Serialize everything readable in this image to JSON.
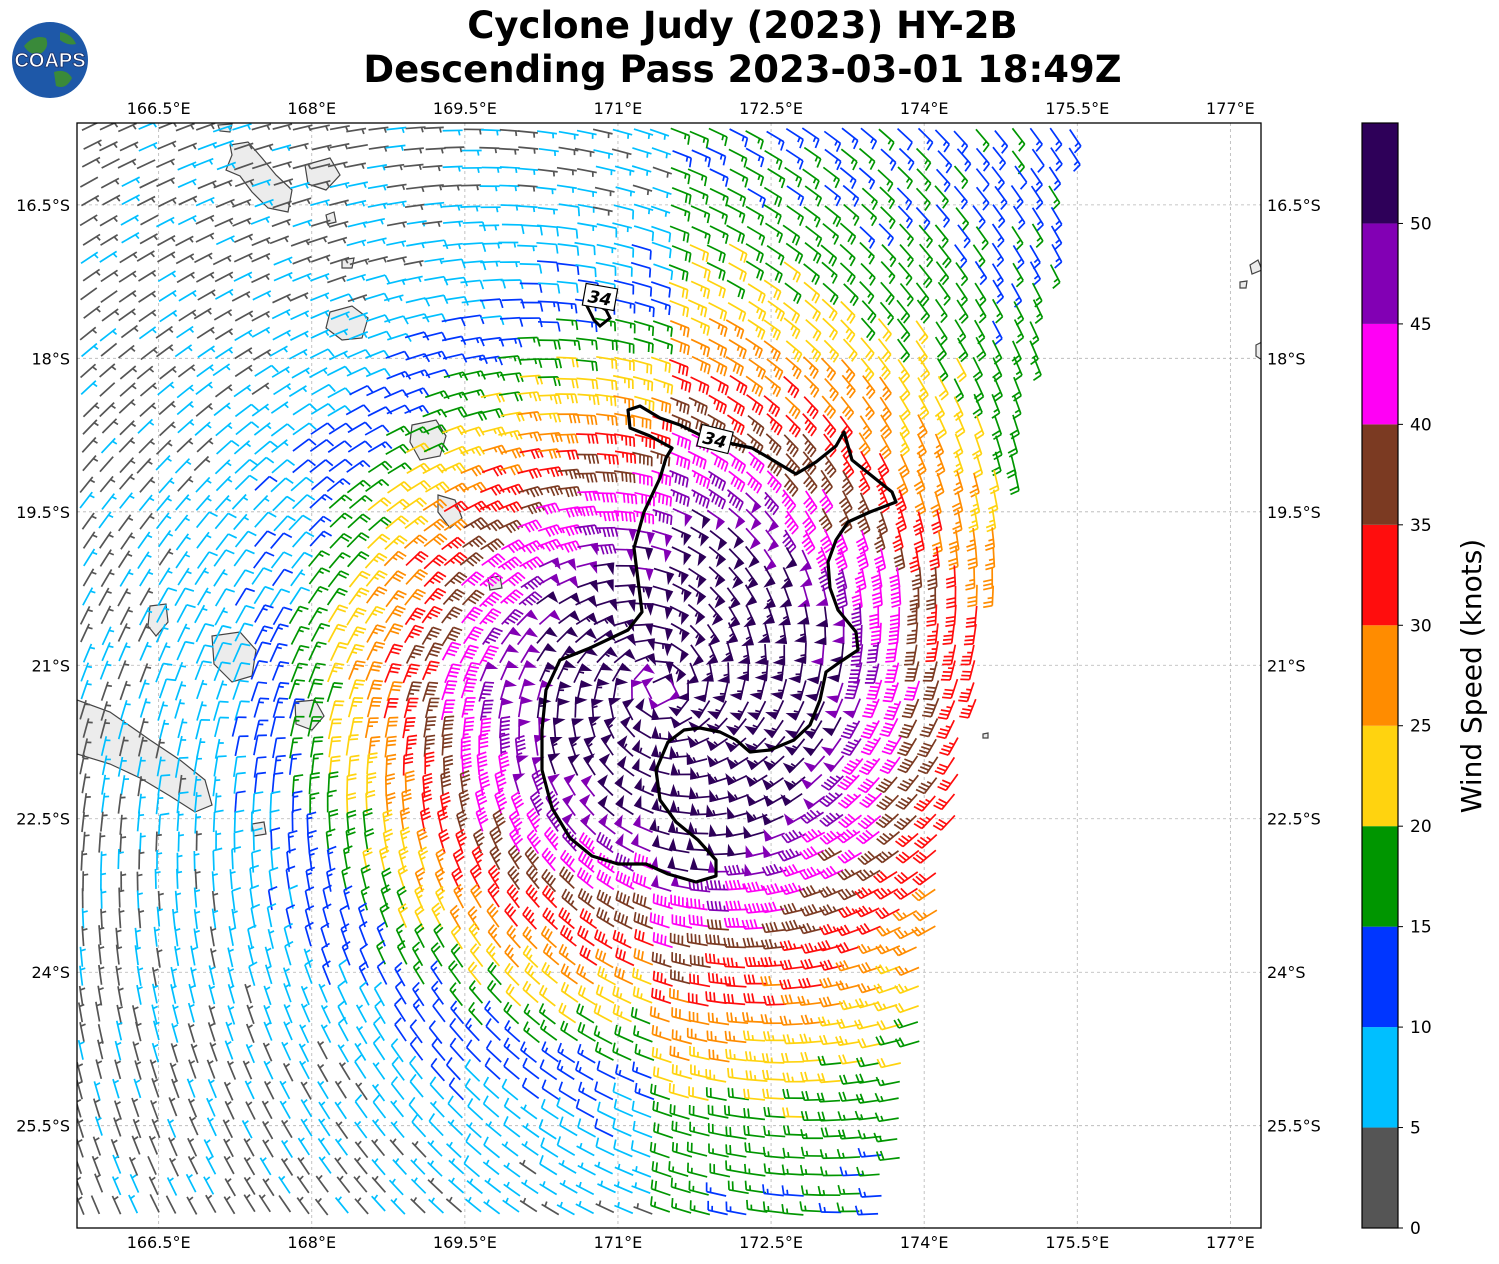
{
  "title": {
    "line1": "Cyclone Judy (2023) HY-2B",
    "line2": "Descending Pass 2023-03-01 18:49Z"
  },
  "logo": {
    "text": "COAPS"
  },
  "map": {
    "lon_labels": [
      "166.5°E",
      "168°E",
      "169.5°E",
      "171°E",
      "172.5°E",
      "174°E",
      "175.5°E",
      "177°E"
    ],
    "lat_labels": [
      "16.5°S",
      "18°S",
      "19.5°S",
      "21°S",
      "22.5°S",
      "24°S",
      "25.5°S"
    ],
    "lon_range": [
      165.7,
      177.3
    ],
    "lat_range": [
      -15.7,
      -26.5
    ],
    "gridlines": true,
    "contour_label": "34",
    "contour_label_2": "34"
  },
  "colorbar": {
    "label": "Wind Speed (knots)",
    "ticks": [
      "0",
      "5",
      "10",
      "15",
      "20",
      "25",
      "30",
      "35",
      "40",
      "45",
      "50"
    ],
    "colors": [
      "#555555",
      "#00bfff",
      "#0036ff",
      "#009600",
      "#ffd30f",
      "#ff8c00",
      "#ff0d0d",
      "#7b3a22",
      "#ff00f5",
      "#8200b4",
      "#2e0059"
    ]
  },
  "colors": {
    "contour": "#000000",
    "land": "#ececec",
    "coast": "#444444"
  }
}
